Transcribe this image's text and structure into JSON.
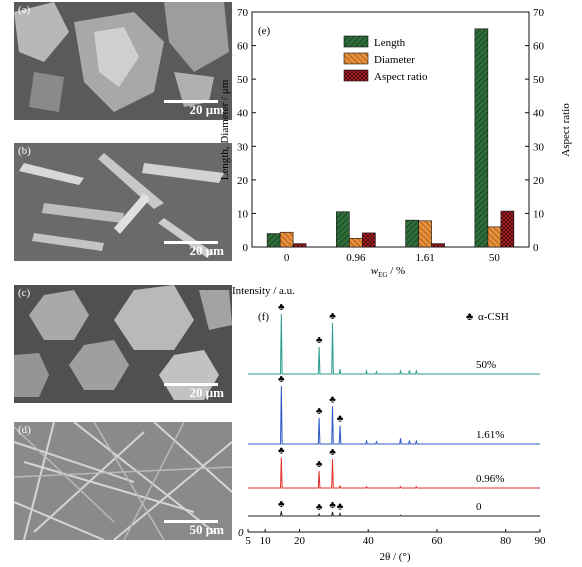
{
  "panels": [
    {
      "label": "(a)",
      "scale": "20 μm"
    },
    {
      "label": "(b)",
      "scale": "20 μm"
    },
    {
      "label": "(c)",
      "scale": "20 μm"
    },
    {
      "label": "(d)",
      "scale": "50 μm"
    }
  ],
  "chart_data": [
    {
      "type": "bar",
      "panel_label": "(e)",
      "categories": [
        "0",
        "0.96",
        "1.61",
        "50"
      ],
      "series": [
        {
          "name": "Length",
          "values": [
            4,
            10.5,
            8,
            65
          ],
          "color": "#2f6e3a"
        },
        {
          "name": "Diameter",
          "values": [
            4.4,
            2.6,
            7.8,
            6
          ],
          "color": "#e98f3a"
        },
        {
          "name": "Aspect ratio",
          "values": [
            1,
            4.2,
            1,
            10.7
          ],
          "color": "#c4232b"
        }
      ],
      "xlabel_main": "w",
      "xlabel_sub": "EG",
      "xlabel_unit": " / %",
      "ylabel": "Length, Diameter / μm",
      "y2label": "Aspect ratio",
      "ylim": [
        0,
        70
      ],
      "y2lim": [
        0,
        70
      ],
      "yticks": [
        "0",
        "10",
        "20",
        "30",
        "40",
        "50",
        "60",
        "70"
      ],
      "legend_position": "top-center"
    },
    {
      "type": "line",
      "panel_label": "(f)",
      "xlabel": "2θ / (°)",
      "ylabel": "Intensity / a.u.",
      "xlim": [
        5,
        90
      ],
      "xticks": [
        "5",
        "10",
        "20",
        "40",
        "60",
        "80",
        "90"
      ],
      "origin_label": "0",
      "legend_symbol": "♣",
      "legend_label": "α-CSH",
      "series": [
        {
          "name": "50%",
          "color": "#2a9d8f",
          "peaks": [
            [
              14.7,
              1.0
            ],
            [
              25.7,
              0.45
            ],
            [
              29.6,
              0.85
            ],
            [
              31.8,
              0.08
            ],
            [
              39.5,
              0.05
            ],
            [
              42.4,
              0.04
            ],
            [
              49.4,
              0.05
            ],
            [
              52.0,
              0.06
            ],
            [
              54.0,
              0.05
            ]
          ],
          "markers": [
            14.7,
            25.7,
            29.6
          ]
        },
        {
          "name": "1.61%",
          "color": "#2e58c7",
          "peaks": [
            [
              14.7,
              1.0
            ],
            [
              25.7,
              0.45
            ],
            [
              29.6,
              0.65
            ],
            [
              31.8,
              0.32
            ],
            [
              39.5,
              0.05
            ],
            [
              42.4,
              0.04
            ],
            [
              49.4,
              0.1
            ],
            [
              52.0,
              0.06
            ],
            [
              54.0,
              0.05
            ]
          ],
          "markers": [
            14.7,
            25.7,
            29.6,
            31.8
          ]
        },
        {
          "name": "0.96%",
          "color": "#e0312c",
          "peaks": [
            [
              14.7,
              0.9
            ],
            [
              25.7,
              0.5
            ],
            [
              29.6,
              0.85
            ],
            [
              31.8,
              0.06
            ],
            [
              39.5,
              0.04
            ],
            [
              49.4,
              0.04
            ],
            [
              54.0,
              0.04
            ]
          ],
          "markers": [
            14.7,
            25.7,
            29.6
          ]
        },
        {
          "name": "0",
          "color": "#222222",
          "peaks": [
            [
              14.7,
              0.3
            ],
            [
              25.7,
              0.12
            ],
            [
              29.6,
              0.25
            ],
            [
              31.8,
              0.15
            ],
            [
              49.4,
              0.05
            ]
          ],
          "markers": [
            14.7,
            25.7,
            29.6,
            31.8
          ]
        }
      ]
    }
  ]
}
